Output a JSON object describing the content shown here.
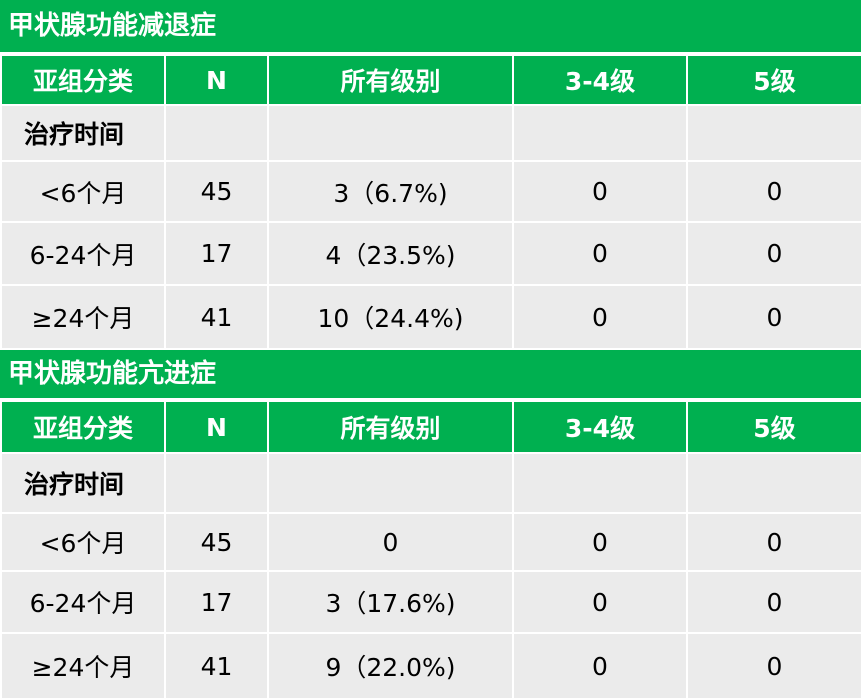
{
  "sections": [
    {
      "title": "甲状腺功能减退症",
      "headers": [
        "亚组分类",
        "N",
        "所有级别",
        "3-4级",
        "5级"
      ],
      "subheading": "治疗时间",
      "rows": [
        {
          "group": "<6个月",
          "n": "45",
          "all": "3（6.7%)",
          "g34": "0",
          "g5": "0"
        },
        {
          "group": "6-24个月",
          "n": "17",
          "all": "4（23.5%)",
          "g34": "0",
          "g5": "0"
        },
        {
          "group": "≥24个月",
          "n": "41",
          "all": "10（24.4%)",
          "g34": "0",
          "g5": "0"
        }
      ]
    },
    {
      "title": "甲状腺功能亢进症",
      "headers": [
        "亚组分类",
        "N",
        "所有级别",
        "3-4级",
        "5级"
      ],
      "subheading": "治疗时间",
      "rows": [
        {
          "group": "<6个月",
          "n": "45",
          "all": "0",
          "g34": "0",
          "g5": "0"
        },
        {
          "group": "6-24个月",
          "n": "17",
          "all": "3（17.6%)",
          "g34": "0",
          "g5": "0"
        },
        {
          "group": "≥24个月",
          "n": "41",
          "all": "9（22.0%)",
          "g34": "0",
          "g5": "0"
        }
      ]
    }
  ],
  "colors": {
    "header_green": "#00b050",
    "cell_gray": "#ebebeb",
    "header_text": "#ffffff",
    "body_text": "#000000"
  }
}
